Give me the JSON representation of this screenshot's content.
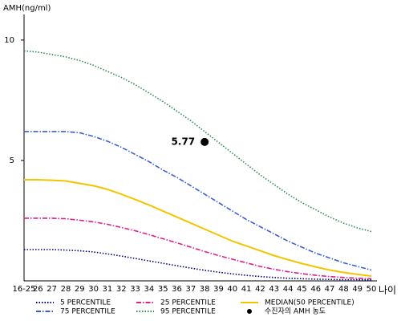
{
  "chart_data": {
    "type": "line",
    "y_label": "AMH(ng/ml)",
    "x_label": "나이",
    "categories": [
      "16-25",
      "26",
      "27",
      "28",
      "29",
      "30",
      "31",
      "32",
      "33",
      "34",
      "35",
      "36",
      "37",
      "38",
      "39",
      "40",
      "41",
      "42",
      "43",
      "44",
      "45",
      "46",
      "47",
      "48",
      "49",
      "50"
    ],
    "ylim": [
      0,
      11.33
    ],
    "yticks": [
      5,
      10
    ],
    "series": [
      {
        "name": "5 PERCENTILE",
        "color": "#000080",
        "style": "dotted",
        "values": [
          1.3,
          1.3,
          1.3,
          1.28,
          1.25,
          1.2,
          1.12,
          1.03,
          0.93,
          0.83,
          0.73,
          0.63,
          0.53,
          0.44,
          0.36,
          0.29,
          0.23,
          0.18,
          0.14,
          0.11,
          0.09,
          0.07,
          0.06,
          0.05,
          0.05,
          0.04
        ]
      },
      {
        "name": "25 PERCENTILE",
        "color": "#e0208a",
        "style": "dashdot",
        "values": [
          2.6,
          2.6,
          2.6,
          2.58,
          2.52,
          2.45,
          2.35,
          2.22,
          2.08,
          1.92,
          1.75,
          1.58,
          1.4,
          1.22,
          1.05,
          0.9,
          0.75,
          0.6,
          0.48,
          0.38,
          0.3,
          0.23,
          0.18,
          0.14,
          0.11,
          0.09
        ]
      },
      {
        "name": "MEDIAN(50 PERCENTILE)",
        "color": "#f2c500",
        "style": "solid",
        "values": [
          4.2,
          4.2,
          4.18,
          4.15,
          4.05,
          3.95,
          3.8,
          3.6,
          3.38,
          3.15,
          2.9,
          2.65,
          2.4,
          2.15,
          1.9,
          1.65,
          1.45,
          1.25,
          1.05,
          0.88,
          0.72,
          0.58,
          0.45,
          0.35,
          0.27,
          0.2
        ]
      },
      {
        "name": "75 PERCENTILE",
        "color": "#3a5fcd",
        "style": "dashdot",
        "values": [
          6.2,
          6.2,
          6.2,
          6.2,
          6.15,
          6.0,
          5.8,
          5.55,
          5.25,
          4.95,
          4.6,
          4.3,
          3.95,
          3.6,
          3.25,
          2.9,
          2.55,
          2.25,
          1.95,
          1.65,
          1.4,
          1.15,
          0.95,
          0.75,
          0.6,
          0.45
        ]
      },
      {
        "name": "95 PERCENTILE",
        "color": "#2e8b57",
        "style": "dotted",
        "values": [
          9.55,
          9.5,
          9.4,
          9.3,
          9.15,
          8.95,
          8.7,
          8.45,
          8.15,
          7.8,
          7.45,
          7.05,
          6.65,
          6.2,
          5.75,
          5.3,
          4.85,
          4.4,
          4.0,
          3.6,
          3.25,
          2.95,
          2.65,
          2.4,
          2.2,
          2.05
        ]
      }
    ],
    "point": {
      "name": "수진자의 AMH 농도",
      "x": "38",
      "value": 5.77,
      "color": "#000000"
    }
  }
}
